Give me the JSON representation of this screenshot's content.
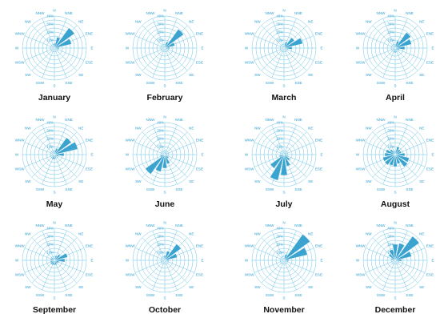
{
  "theme": {
    "grid": "#5bbde4",
    "bar": "#3aa3cf",
    "label": "#2a9fd0"
  },
  "chart_data": {
    "type": "polar-bar",
    "directions": [
      "N",
      "NNE",
      "NE",
      "ENE",
      "E",
      "ESE",
      "SE",
      "SSE",
      "S",
      "SSW",
      "SW",
      "WSW",
      "W",
      "WNW",
      "NW",
      "NNW"
    ],
    "ring_labels": [
      "10%",
      "20%",
      "30%",
      "40%"
    ],
    "rmax": 40,
    "charts": [
      {
        "title": "January",
        "values": [
          6,
          14,
          31,
          22,
          6,
          3,
          2,
          2,
          2,
          2,
          2,
          2,
          2,
          2,
          2,
          3
        ]
      },
      {
        "title": "February",
        "values": [
          3,
          8,
          29,
          13,
          6,
          3,
          2,
          2,
          2,
          2,
          2,
          2,
          2,
          2,
          2,
          3
        ]
      },
      {
        "title": "March",
        "values": [
          3,
          8,
          16,
          24,
          10,
          3,
          2,
          2,
          2,
          2,
          2,
          2,
          2,
          2,
          2,
          3
        ]
      },
      {
        "title": "April",
        "values": [
          4,
          9,
          24,
          21,
          12,
          5,
          3,
          3,
          6,
          3,
          3,
          3,
          2,
          2,
          2,
          3
        ]
      },
      {
        "title": "May",
        "values": [
          4,
          8,
          26,
          30,
          12,
          5,
          3,
          4,
          6,
          6,
          3,
          3,
          2,
          2,
          2,
          3
        ]
      },
      {
        "title": "June",
        "values": [
          2,
          3,
          3,
          3,
          3,
          3,
          6,
          12,
          17,
          22,
          30,
          6,
          2,
          2,
          2,
          2
        ]
      },
      {
        "title": "July",
        "values": [
          2,
          3,
          3,
          3,
          3,
          4,
          9,
          15,
          26,
          33,
          21,
          6,
          3,
          2,
          2,
          2
        ]
      },
      {
        "title": "August",
        "values": [
          4,
          10,
          8,
          8,
          12,
          18,
          19,
          12,
          15,
          14,
          16,
          16,
          13,
          12,
          8,
          4
        ]
      },
      {
        "title": "September",
        "values": [
          3,
          6,
          9,
          17,
          13,
          6,
          5,
          6,
          6,
          6,
          6,
          5,
          4,
          5,
          4,
          3
        ]
      },
      {
        "title": "October",
        "values": [
          6,
          12,
          25,
          16,
          5,
          2,
          2,
          2,
          2,
          2,
          2,
          2,
          2,
          2,
          2,
          3
        ]
      },
      {
        "title": "November",
        "values": [
          3,
          8,
          40,
          30,
          6,
          3,
          2,
          2,
          2,
          2,
          2,
          2,
          2,
          2,
          2,
          2
        ]
      },
      {
        "title": "December",
        "values": [
          20,
          22,
          37,
          21,
          8,
          3,
          2,
          2,
          2,
          2,
          2,
          2,
          3,
          5,
          10,
          14
        ]
      }
    ]
  }
}
